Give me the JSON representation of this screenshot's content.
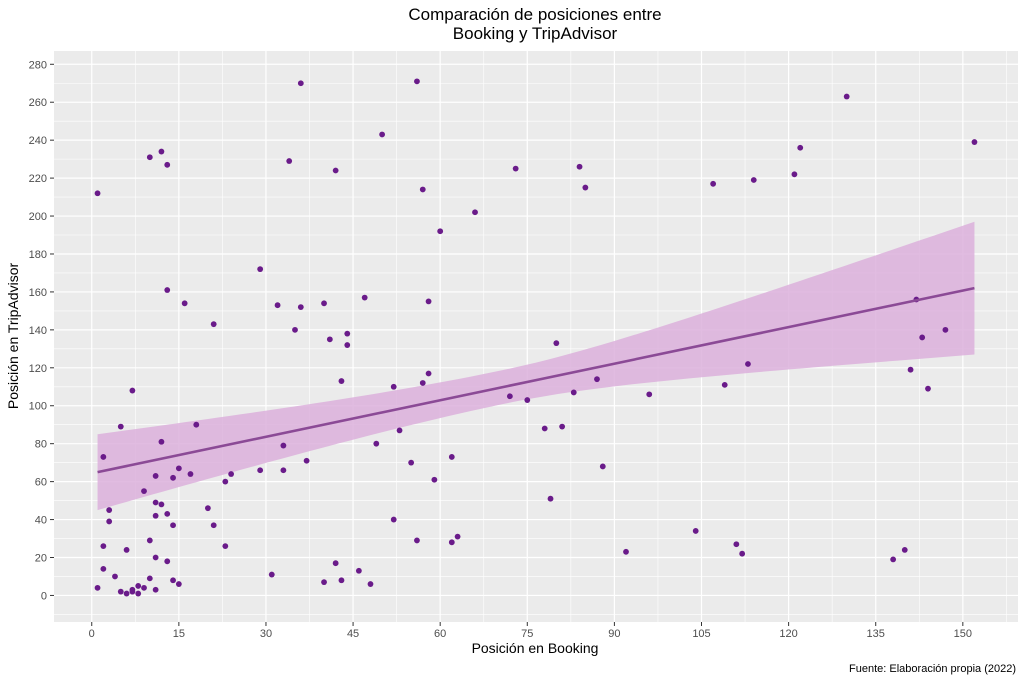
{
  "chart_data": {
    "type": "scatter",
    "title": [
      "Comparación de posiciones entre",
      "Booking y TripAdvisor"
    ],
    "xlabel": "Posición en Booking",
    "ylabel": "Posición en TripAdvisor",
    "caption": "Fuente: Elaboración propia (2022)",
    "xlim": [
      -6.5,
      159.5
    ],
    "ylim": [
      -14,
      287
    ],
    "x_ticks": [
      0,
      15,
      30,
      45,
      60,
      75,
      90,
      105,
      120,
      135,
      150
    ],
    "y_ticks": [
      0,
      20,
      40,
      60,
      80,
      100,
      120,
      140,
      160,
      180,
      200,
      220,
      240,
      260,
      280
    ],
    "grid": true,
    "colors": {
      "panel": "#ebebeb",
      "grid": "#ffffff",
      "points": "#6a1b8a",
      "trend_line": "#8b4a96",
      "confidence_band": "#dcb0dc"
    },
    "trend": {
      "method": "linear",
      "x_range": [
        1,
        152
      ],
      "fit": [
        65,
        162
      ],
      "lower": [
        45,
        127
      ],
      "upper": [
        85,
        197
      ],
      "band_center": [
        71,
        101
      ]
    },
    "points": [
      [
        1,
        212
      ],
      [
        1,
        4
      ],
      [
        2,
        26
      ],
      [
        2,
        14
      ],
      [
        2,
        73
      ],
      [
        3,
        45
      ],
      [
        3,
        39
      ],
      [
        4,
        10
      ],
      [
        5,
        89
      ],
      [
        5,
        2
      ],
      [
        6,
        24
      ],
      [
        6,
        1
      ],
      [
        7,
        3
      ],
      [
        7,
        108
      ],
      [
        7,
        2
      ],
      [
        8,
        5
      ],
      [
        8,
        1
      ],
      [
        9,
        4
      ],
      [
        9,
        55
      ],
      [
        10,
        231
      ],
      [
        10,
        29
      ],
      [
        10,
        9
      ],
      [
        11,
        63
      ],
      [
        11,
        49
      ],
      [
        11,
        42
      ],
      [
        11,
        20
      ],
      [
        11,
        3
      ],
      [
        12,
        234
      ],
      [
        12,
        81
      ],
      [
        12,
        48
      ],
      [
        13,
        227
      ],
      [
        13,
        161
      ],
      [
        13,
        43
      ],
      [
        13,
        18
      ],
      [
        14,
        62
      ],
      [
        14,
        37
      ],
      [
        14,
        8
      ],
      [
        15,
        67
      ],
      [
        15,
        6
      ],
      [
        16,
        154
      ],
      [
        17,
        64
      ],
      [
        18,
        90
      ],
      [
        20,
        46
      ],
      [
        21,
        143
      ],
      [
        21,
        37
      ],
      [
        23,
        60
      ],
      [
        23,
        26
      ],
      [
        24,
        64
      ],
      [
        29,
        172
      ],
      [
        29,
        66
      ],
      [
        31,
        11
      ],
      [
        32,
        153
      ],
      [
        33,
        79
      ],
      [
        33,
        66
      ],
      [
        34,
        229
      ],
      [
        35,
        140
      ],
      [
        36,
        270
      ],
      [
        36,
        152
      ],
      [
        37,
        71
      ],
      [
        40,
        154
      ],
      [
        40,
        7
      ],
      [
        41,
        135
      ],
      [
        42,
        224
      ],
      [
        42,
        17
      ],
      [
        43,
        113
      ],
      [
        43,
        8
      ],
      [
        44,
        138
      ],
      [
        44,
        132
      ],
      [
        46,
        13
      ],
      [
        47,
        157
      ],
      [
        48,
        6
      ],
      [
        49,
        80
      ],
      [
        50,
        243
      ],
      [
        52,
        110
      ],
      [
        52,
        40
      ],
      [
        53,
        87
      ],
      [
        55,
        70
      ],
      [
        56,
        271
      ],
      [
        56,
        29
      ],
      [
        57,
        214
      ],
      [
        57,
        112
      ],
      [
        58,
        155
      ],
      [
        58,
        117
      ],
      [
        59,
        61
      ],
      [
        60,
        192
      ],
      [
        62,
        73
      ],
      [
        62,
        28
      ],
      [
        63,
        31
      ],
      [
        66,
        202
      ],
      [
        72,
        105
      ],
      [
        73,
        225
      ],
      [
        75,
        103
      ],
      [
        78,
        88
      ],
      [
        79,
        51
      ],
      [
        80,
        133
      ],
      [
        81,
        89
      ],
      [
        83,
        107
      ],
      [
        84,
        226
      ],
      [
        85,
        215
      ],
      [
        87,
        114
      ],
      [
        88,
        68
      ],
      [
        92,
        23
      ],
      [
        96,
        106
      ],
      [
        104,
        34
      ],
      [
        107,
        217
      ],
      [
        109,
        111
      ],
      [
        111,
        27
      ],
      [
        112,
        22
      ],
      [
        113,
        122
      ],
      [
        114,
        219
      ],
      [
        121,
        222
      ],
      [
        122,
        236
      ],
      [
        130,
        263
      ],
      [
        138,
        19
      ],
      [
        140,
        24
      ],
      [
        141,
        119
      ],
      [
        142,
        156
      ],
      [
        143,
        136
      ],
      [
        144,
        109
      ],
      [
        147,
        140
      ],
      [
        152,
        239
      ]
    ]
  }
}
